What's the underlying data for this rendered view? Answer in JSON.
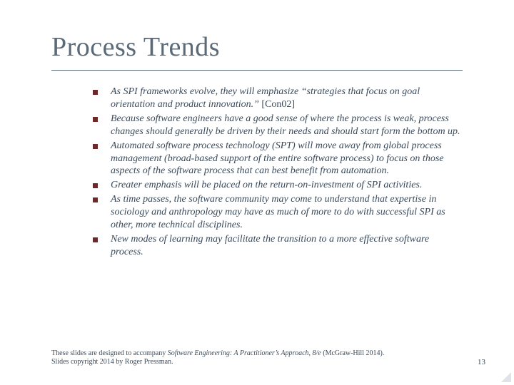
{
  "title": "Process Trends",
  "title_fontsize": 38,
  "title_color": "#5a6a78",
  "rule_color": "#5a6a78",
  "bullet_marker_color": "#6a2a2a",
  "body_fontsize": 14,
  "body_color": "#3a4a5a",
  "bullets": [
    {
      "italic": "As SPI frameworks evolve, they will emphasize “strategies that focus on goal orientation and product innovation.” ",
      "upright": "[Con02]"
    },
    {
      "italic": "Because software engineers have a good sense of where the process is weak, process changes should generally be driven by their needs and should start form the bottom up.",
      "upright": ""
    },
    {
      "italic": "Automated software process technology (SPT) will move away from global process management (broad-based support of the entire software process) to focus on those aspects of the software process that can best benefit from automation.",
      "upright": ""
    },
    {
      "italic": "Greater emphasis will be placed on the return-on-investment of SPI activities.",
      "upright": ""
    },
    {
      "italic": "As time passes, the software community may come to understand that expertise in sociology and anthropology may have as much of more to do with successful SPI as other, more technical disciplines.",
      "upright": ""
    },
    {
      "italic": "New modes of learning may facilitate the transition to a more effective software process.",
      "upright": ""
    }
  ],
  "footer": {
    "prefix": "These slides are designed to accompany ",
    "book_title": "Software Engineering: A Practitioner’s Approach, 8/e ",
    "suffix": "(McGraw-Hill 2014). Slides copyright 2014 by Roger Pressman."
  },
  "footer_fontsize": 10,
  "page_number": "13",
  "background_color": "#ffffff"
}
